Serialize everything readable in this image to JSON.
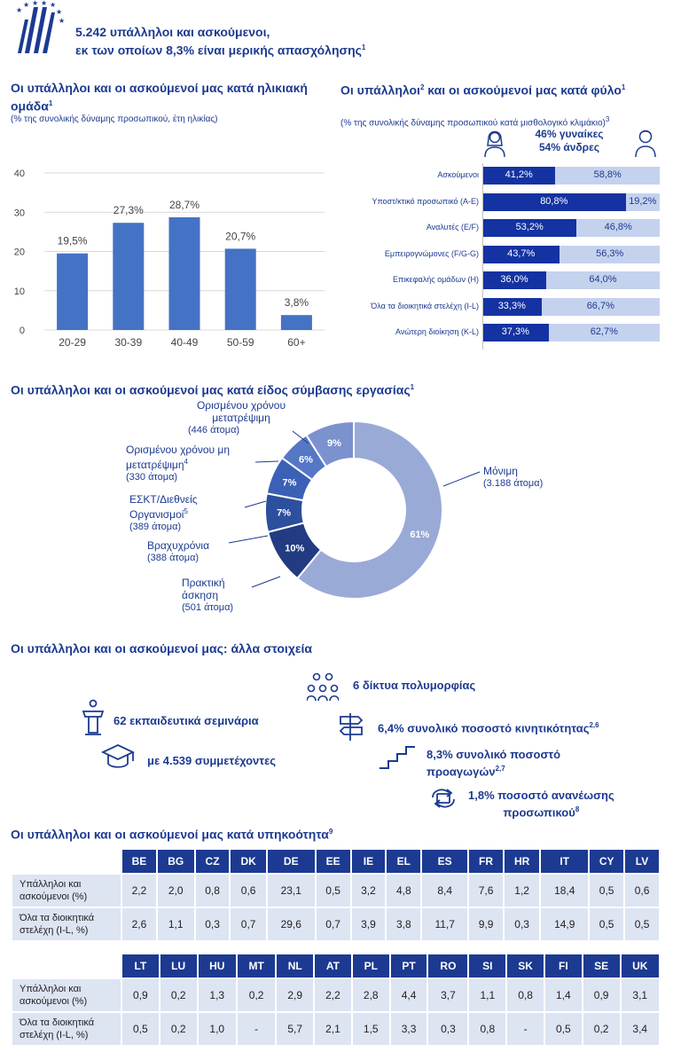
{
  "header": {
    "line1": "5.242 υπάλληλοι και ασκούμενοι,",
    "line2": "εκ των οποίων 8,3% είναι μερικής απασχόλησης",
    "line2_sup": "1"
  },
  "age": {
    "title": "Οι υπάλληλοι  και οι ασκούμενοί μας κατά ηλικιακή  ομάδα",
    "title_sup": "1",
    "subtitle": "(% της συνολικής δύναμης προσωπικού, έτη ηλικίας)"
  },
  "gender": {
    "title": "Οι υπάλληλοι",
    "title_sup1": "2",
    "title_rest": " και οι ασκούμενοί μας κατά φύλο",
    "title_sup2": "1",
    "subtitle": "(% της συνολικής δύναμης προσωπικού κατά μισθολογικό κλιμάκιο)",
    "subtitle_sup": "3",
    "women": "46% γυναίκες",
    "men": "54% άνδρες"
  },
  "contract": {
    "title": "Οι υπάλληλοι  και οι ασκούμενοί μας κατά είδος σύμβασης εργασίας",
    "title_sup": "1"
  },
  "other": {
    "title": "Οι υπάλληλοι  και οι ασκούμενοί μας: άλλα  στοιχεία",
    "networks": "6 δίκτυα πολυμορφίας",
    "seminars": "62 εκπαιδευτικά σεμινάρια",
    "mobility": "6,4% συνολικό ποσοστό κινητικότητας",
    "mobility_sup": "2,6",
    "participants": "με 4.539 συμμετέχοντες",
    "promotion_l1": "8,3% συνολικό ποσοστό",
    "promotion_l2": "προαγωγών",
    "promotion_sup": "2,7",
    "renewal_l1": "1,8% ποσοστό ανανέωσης",
    "renewal_l2": "προσωπικού",
    "renewal_sup": "8"
  },
  "nationality": {
    "title": "Οι υπάλληλοι και οι ασκούμενοί μας κατά υπηκοότητα",
    "title_sup": "9",
    "row1_l1": "Υπάλληλοι και",
    "row1_l2": "ασκούμενοι (%)",
    "row2_l1": "Όλα τα διοικητικά",
    "row2_l2": "στελέχη (I-L, %)",
    "table1": {
      "countries": [
        "BE",
        "BG",
        "CZ",
        "DK",
        "DE",
        "EE",
        "IE",
        "EL",
        "ES",
        "FR",
        "HR",
        "IT",
        "CY",
        "LV"
      ],
      "staff": [
        "2,2",
        "2,0",
        "0,8",
        "0,6",
        "23,1",
        "0,5",
        "3,2",
        "4,8",
        "8,4",
        "7,6",
        "1,2",
        "18,4",
        "0,5",
        "0,6"
      ],
      "managers": [
        "2,6",
        "1,1",
        "0,3",
        "0,7",
        "29,6",
        "0,7",
        "3,9",
        "3,8",
        "11,7",
        "9,9",
        "0,3",
        "14,9",
        "0,5",
        "0,5"
      ]
    },
    "table2": {
      "countries": [
        "LT",
        "LU",
        "HU",
        "MT",
        "NL",
        "AT",
        "PL",
        "PT",
        "RO",
        "SI",
        "SK",
        "FI",
        "SE",
        "UK"
      ],
      "staff": [
        "0,9",
        "0,2",
        "1,3",
        "0,2",
        "2,9",
        "2,2",
        "2,8",
        "4,4",
        "3,7",
        "1,1",
        "0,8",
        "1,4",
        "0,9",
        "3,1"
      ],
      "managers": [
        "0,5",
        "0,2",
        "1,0",
        "-",
        "5,7",
        "2,1",
        "1,5",
        "3,3",
        "0,3",
        "0,8",
        "-",
        "0,5",
        "0,2",
        "3,4"
      ]
    }
  },
  "chart_data": [
    {
      "type": "bar",
      "categories": [
        "20-29",
        "30-39",
        "40-49",
        "50-59",
        "60+"
      ],
      "values": [
        19.5,
        27.3,
        28.7,
        20.7,
        3.8
      ],
      "labels": [
        "19,5%",
        "27,3%",
        "28,7%",
        "20,7%",
        "3,8%"
      ],
      "yticks": [
        "0",
        "10",
        "20",
        "30",
        "40"
      ],
      "ylim": [
        0,
        40
      ],
      "grid": true,
      "color": "#4472c4"
    },
    {
      "type": "bar",
      "orientation": "horizontal-stacked",
      "categories": [
        "Ασκούμενοι",
        "Υποστ/κτικό  προσωπικό (A-E)",
        "Αναλυτές  (E/F)",
        "Εμπειρογνώμονες (F/G-G)",
        "Επικεφαλής ομάδων  (H)",
        "Όλα τα  διοικητικά στελέχη  (I-L)",
        "Ανώτερη διοίκηση (K-L)"
      ],
      "series": [
        {
          "name": "46% γυναίκες",
          "values": [
            41.2,
            80.8,
            53.2,
            43.7,
            36.0,
            33.3,
            37.3
          ],
          "labels": [
            "41,2%",
            "80,8%",
            "53,2%",
            "43,7%",
            "36,0%",
            "33,3%",
            "37,3%"
          ],
          "color": "#1432a2"
        },
        {
          "name": "54% άνδρες",
          "values": [
            58.8,
            19.2,
            46.8,
            56.3,
            64.0,
            66.7,
            62.7
          ],
          "labels": [
            "58,8%",
            "19,2%",
            "46,8%",
            "56,3%",
            "64,0%",
            "66,7%",
            "62,7%"
          ],
          "color": "#c5d2ee"
        }
      ]
    },
    {
      "type": "pie",
      "donut": true,
      "slices": [
        {
          "name": "Μόνιμη",
          "count": "(3.188 άτομα)",
          "percent": 61,
          "label": "61%",
          "color": "#9aaad6"
        },
        {
          "name": "Πρακτική άσκηση",
          "count": "(501 άτομα)",
          "percent": 10,
          "label": "10%",
          "color": "#223b82"
        },
        {
          "name": "Βραχυχρόνια",
          "count": "(388 άτομα)",
          "percent": 7,
          "label": "7%",
          "color": "#2c4f9e"
        },
        {
          "name": "ΕΣΚΤ/Διεθνείς Οργανισμοί",
          "name_sup": "5",
          "count": "(389 άτομα)",
          "percent": 7,
          "label": "7%",
          "color": "#3a61b6"
        },
        {
          "name": "Ορισμένου χρόνου μη μετατρέψιμη",
          "name_sup": "4",
          "count": "(330 άτομα)",
          "percent": 6,
          "label": "6%",
          "color": "#5577c6"
        },
        {
          "name": "Ορισμένου χρόνου μετατρέψιμη",
          "count": "(446 άτομα)",
          "percent": 9,
          "label": "9%",
          "color": "#7b92cf"
        }
      ]
    }
  ]
}
